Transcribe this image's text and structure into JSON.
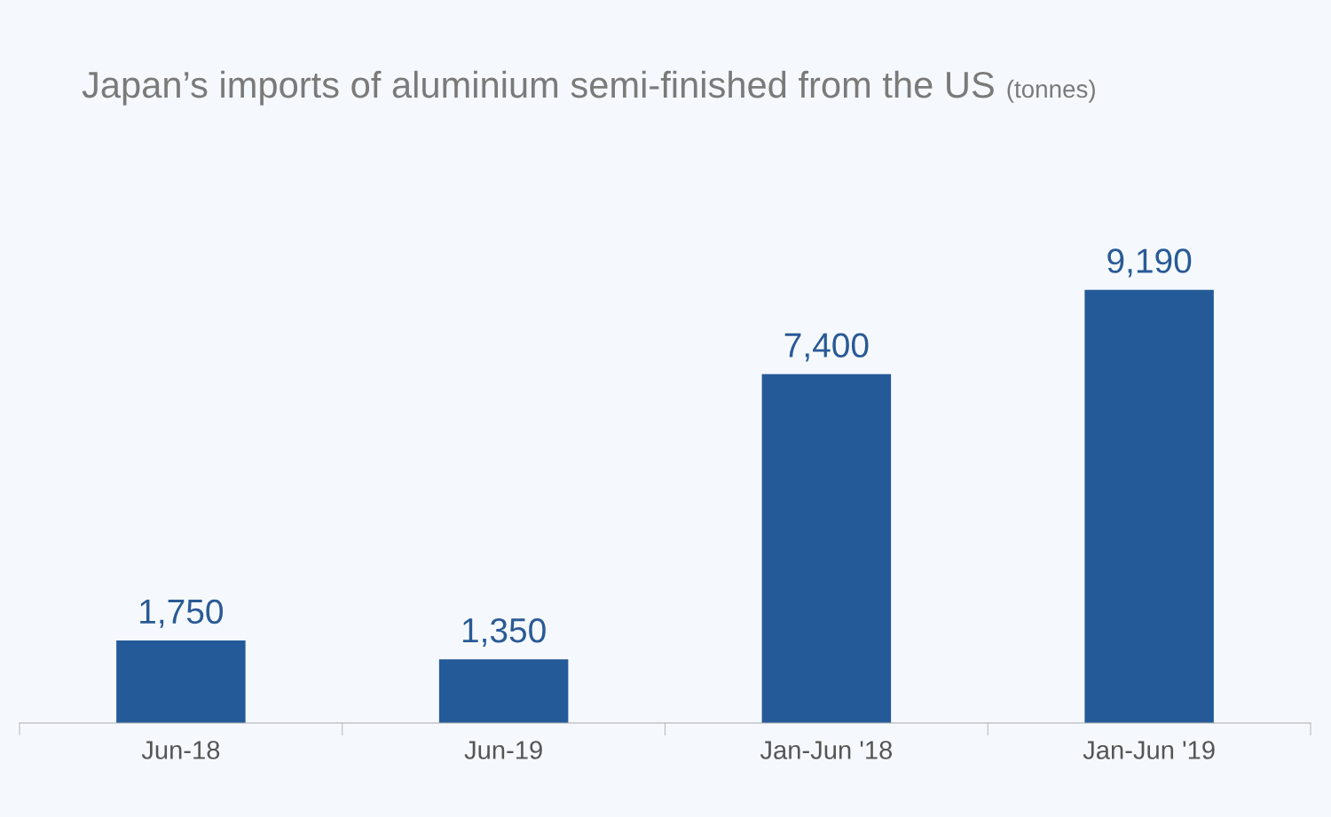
{
  "chart_data": {
    "type": "bar",
    "title": "Japan’s imports of aluminium semi-finished from the US",
    "subtitle": "(tonnes)",
    "categories": [
      "Jun-18",
      "Jun-19",
      "Jan-Jun '18",
      "Jan-Jun '19"
    ],
    "values": [
      1750,
      1350,
      7400,
      9190
    ],
    "color": "#245a98",
    "value_labels": [
      "1,750",
      "1,350",
      "7,400",
      "9,190"
    ],
    "grid": false,
    "legend": false
  }
}
